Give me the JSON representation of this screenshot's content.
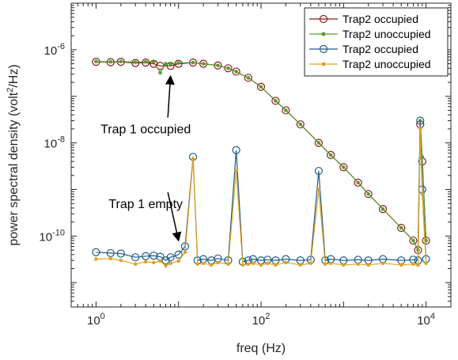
{
  "chart_data": {
    "type": "line",
    "xscale": "log",
    "yscale": "log",
    "xlim": [
      0.5,
      20000
    ],
    "ylim": [
      3e-12,
      1e-05
    ],
    "xlabel": "freq (Hz)",
    "ylabel_prefix": "power spectral density (volt",
    "ylabel_sup": "2",
    "ylabel_suffix": "/Hz)",
    "xticks": [
      {
        "value": 1,
        "base": "10",
        "exp": "0"
      },
      {
        "value": 100,
        "base": "10",
        "exp": "2"
      },
      {
        "value": 10000,
        "base": "10",
        "exp": "4"
      }
    ],
    "yticks": [
      {
        "value": 1e-10,
        "base": "10",
        "exp": "-10"
      },
      {
        "value": 1e-08,
        "base": "10",
        "exp": "-8"
      },
      {
        "value": 1e-06,
        "base": "10",
        "exp": "-6"
      }
    ],
    "legend_position": "top-right",
    "series": [
      {
        "name": "Trap2 occupied",
        "color": "#8B1A1A",
        "marker": "circle",
        "x": [
          1,
          1.5,
          2,
          3,
          4,
          5,
          6,
          8,
          10,
          15,
          20,
          30,
          40,
          50,
          70,
          100,
          150,
          200,
          300,
          500,
          700,
          1000,
          1500,
          2000,
          3000,
          5000,
          7000,
          8000,
          8500,
          9000,
          10000
        ],
        "y": [
          5.5e-07,
          5.4e-07,
          5.5e-07,
          5.2e-07,
          5.3e-07,
          5e-07,
          4.5e-07,
          4.5e-07,
          5e-07,
          5.3e-07,
          5e-07,
          4.6e-07,
          4e-07,
          3.4e-07,
          2.5e-07,
          1.6e-07,
          8e-08,
          5e-08,
          2.5e-08,
          1e-08,
          5.5e-09,
          3e-09,
          1.4e-09,
          8e-10,
          3.8e-10,
          1.5e-10,
          8e-11,
          5e-11,
          2.5e-08,
          4e-09,
          8e-11
        ]
      },
      {
        "name": "Trap2 unoccupied",
        "color": "#5B9A2F",
        "marker": "dot",
        "x": [
          1,
          1.5,
          2,
          3,
          4,
          5,
          6,
          7,
          8,
          10,
          15,
          20,
          30,
          40,
          50,
          70,
          100,
          150,
          200,
          300,
          500,
          700,
          1000,
          1500,
          2000,
          3000,
          5000,
          7000,
          8000,
          8500,
          9000,
          10000
        ],
        "y": [
          5.6e-07,
          5.5e-07,
          5.6e-07,
          5.4e-07,
          5.5e-07,
          5.5e-07,
          3.2e-07,
          5e-07,
          5e-07,
          5.2e-07,
          5.3e-07,
          5e-07,
          4.6e-07,
          4e-07,
          3.4e-07,
          2.5e-07,
          1.6e-07,
          8e-08,
          5e-08,
          2.5e-08,
          1e-08,
          5.5e-09,
          3e-09,
          1.4e-09,
          8e-10,
          3.8e-10,
          1.5e-10,
          8e-11,
          5e-11,
          3e-08,
          5e-09,
          8e-11
        ]
      },
      {
        "name": "Trap2 occupied",
        "color": "#1F5C8A",
        "marker": "circle",
        "x": [
          1,
          1.5,
          2,
          3,
          4,
          5,
          6,
          7,
          8,
          10,
          12,
          15,
          17,
          20,
          25,
          30,
          40,
          50,
          60,
          70,
          80,
          100,
          120,
          150,
          200,
          300,
          400,
          500,
          600,
          700,
          1000,
          1500,
          2000,
          3000,
          5000,
          7000,
          8000,
          8500,
          9000,
          10000
        ],
        "y": [
          4.5e-11,
          4.3e-11,
          4.2e-11,
          3.5e-11,
          3.7e-11,
          3.8e-11,
          3.6e-11,
          3e-11,
          3.5e-11,
          4e-11,
          6e-11,
          5e-09,
          3e-11,
          3.2e-11,
          3e-11,
          3.3e-11,
          3e-11,
          7e-09,
          2.8e-11,
          3e-11,
          3.2e-11,
          3e-11,
          3.1e-11,
          3e-11,
          3.2e-11,
          3e-11,
          3.1e-11,
          2.5e-09,
          3e-11,
          3.2e-11,
          3e-11,
          3.1e-11,
          3e-11,
          3.2e-11,
          3e-11,
          3.1e-11,
          3e-11,
          3e-08,
          1e-09,
          3.2e-11
        ]
      },
      {
        "name": "Trap2 unoccupied",
        "color": "#E0A31E",
        "marker": "dot",
        "x": [
          1,
          1.5,
          2,
          3,
          4,
          5,
          6,
          7,
          8,
          10,
          12,
          15,
          17,
          20,
          25,
          30,
          40,
          50,
          60,
          70,
          80,
          100,
          120,
          150,
          200,
          300,
          400,
          500,
          600,
          700,
          1000,
          1500,
          2000,
          3000,
          5000,
          7000,
          8000,
          8500,
          9000,
          10000
        ],
        "y": [
          3.2e-11,
          3.3e-11,
          3e-11,
          2.5e-11,
          2.8e-11,
          2.7e-11,
          2.9e-11,
          2.3e-11,
          2.6e-11,
          2.9e-11,
          4.5e-11,
          4.5e-09,
          2.5e-11,
          2.6e-11,
          2.4e-11,
          2.7e-11,
          2.5e-11,
          2.5e-09,
          2.4e-11,
          2.5e-11,
          2.6e-11,
          2.4e-11,
          2.6e-11,
          2.4e-11,
          2.7e-11,
          2.4e-11,
          2.6e-11,
          1e-09,
          2.5e-11,
          2.6e-11,
          2.4e-11,
          2.5e-11,
          2.4e-11,
          2.6e-11,
          2.4e-11,
          2.5e-11,
          2.4e-11,
          2e-08,
          8e-10,
          2.6e-11
        ]
      }
    ],
    "annotations": [
      {
        "text": "Trap 1 occupied",
        "x": 4,
        "y": 1.6e-08,
        "arrow_to": [
          8,
          2.7e-07
        ]
      },
      {
        "text": "Trap 1 empty",
        "x": 4,
        "y": 4e-10,
        "arrow_to": [
          10,
          8e-11
        ]
      }
    ]
  }
}
